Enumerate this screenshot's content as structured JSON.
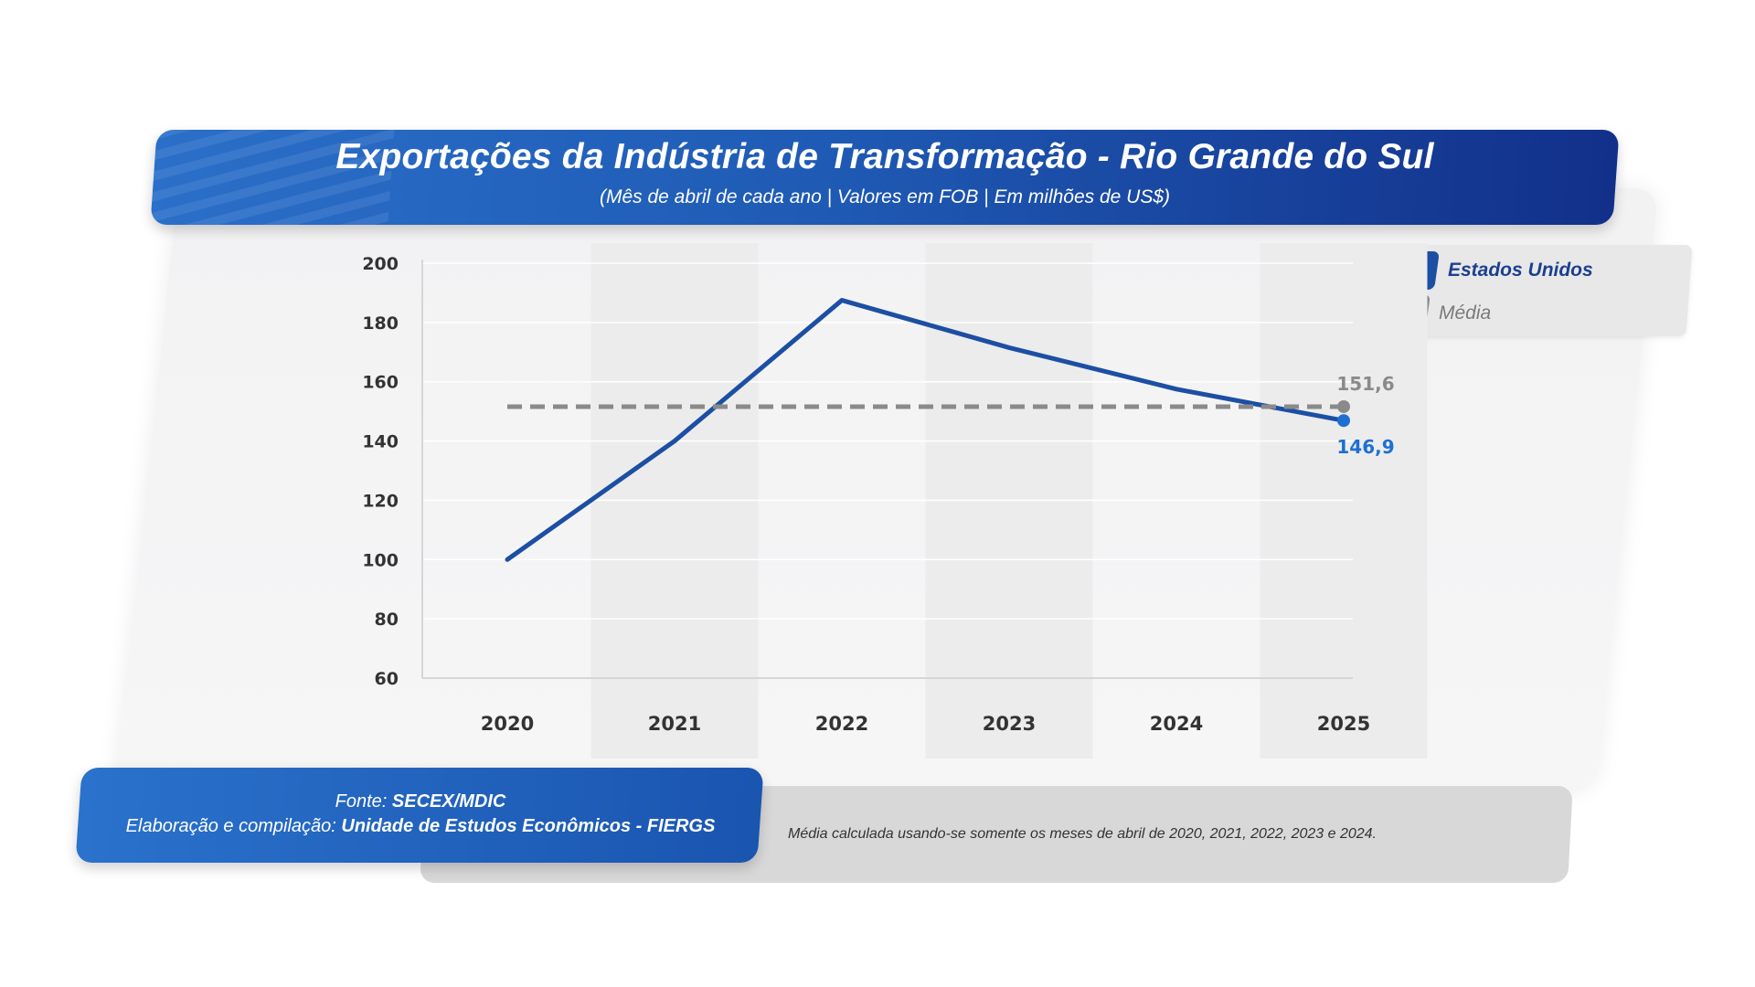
{
  "header": {
    "title": "Exportações da Indústria de Transformação - Rio Grande do Sul",
    "subtitle": "(Mês de abril de cada ano | Valores em FOB | Em milhões de US$)"
  },
  "legend": {
    "series_label": "Estados Unidos",
    "average_label": "Média"
  },
  "footer": {
    "source_prefix": "Fonte: ",
    "source_value": "SECEX/MDIC",
    "compilation_prefix": "Elaboração e compilação: ",
    "compilation_value": "Unidade de Estudos Econômicos - FIERGS",
    "note": "Média calculada usando-se somente os meses de abril de 2020, 2021, 2022, 2023 e 2024."
  },
  "colors": {
    "series": "#1c4fa3",
    "series_point": "#1f6fd0",
    "average": "#8a8a8a",
    "title_band": "#1f5bb5"
  },
  "chart_data": {
    "type": "line",
    "title": "Exportações da Indústria de Transformação - Rio Grande do Sul",
    "subtitle": "(Mês de abril de cada ano | Valores em FOB | Em milhões de US$)",
    "x": [
      "2020",
      "2021",
      "2022",
      "2023",
      "2024",
      "2025"
    ],
    "series": [
      {
        "name": "Estados Unidos",
        "values": [
          100,
          140,
          187.5,
          171.5,
          157.5,
          146.9
        ]
      },
      {
        "name": "Média",
        "values": [
          151.6,
          151.6,
          151.6,
          151.6,
          151.6,
          151.6
        ],
        "style": "dashed"
      }
    ],
    "ylim": [
      60,
      200
    ],
    "yticks": [
      60,
      80,
      100,
      120,
      140,
      160,
      180,
      200
    ],
    "grid": true,
    "legend_position": "top-right",
    "data_labels": [
      {
        "series": "Média",
        "x": "2025",
        "text": "151,6"
      },
      {
        "series": "Estados Unidos",
        "x": "2025",
        "text": "146,9"
      }
    ]
  }
}
